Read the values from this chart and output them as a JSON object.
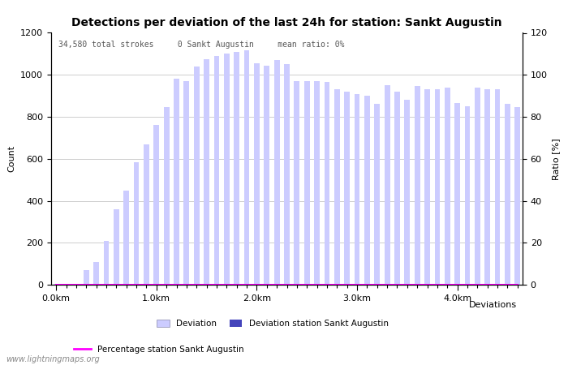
{
  "title": "Detections per deviation of the last 24h for station: Sankt Augustin",
  "subtitle": "34,580 total strokes     0 Sankt Augustin     mean ratio: 0%",
  "xlabel": "Deviations",
  "ylabel_left": "Count",
  "ylabel_right": "Ratio [%]",
  "watermark": "www.lightningmaps.org",
  "ylim_left": [
    0,
    1200
  ],
  "ylim_right": [
    0,
    120
  ],
  "yticks_left": [
    0,
    200,
    400,
    600,
    800,
    1000,
    1200
  ],
  "yticks_right": [
    0,
    20,
    40,
    60,
    80,
    100,
    120
  ],
  "xtick_labels": [
    "0.0km",
    "1.0km",
    "2.0km",
    "3.0km",
    "4.0km"
  ],
  "xtick_positions": [
    0,
    10,
    20,
    30,
    40
  ],
  "bar_color_light": "#ccccff",
  "bar_color_dark": "#4444bb",
  "ratio_line_color": "#ff00ff",
  "grid_color": "#bbbbbb",
  "deviation_values": [
    5,
    5,
    5,
    70,
    110,
    210,
    360,
    450,
    585,
    670,
    760,
    845,
    980,
    970,
    1040,
    1075,
    1090,
    1100,
    1110,
    1115,
    1055,
    1045,
    1070,
    1050,
    970,
    970,
    970,
    965,
    930,
    920,
    910,
    900,
    860,
    950,
    920,
    880,
    945,
    930,
    930,
    940,
    865,
    850,
    940,
    930,
    930,
    860,
    845
  ],
  "station_values": [
    0,
    0,
    0,
    0,
    0,
    0,
    0,
    0,
    0,
    0,
    0,
    0,
    0,
    0,
    0,
    0,
    0,
    0,
    0,
    0,
    0,
    0,
    0,
    0,
    0,
    0,
    0,
    0,
    0,
    0,
    0,
    0,
    0,
    0,
    0,
    0,
    0,
    0,
    0,
    0,
    0,
    0,
    0,
    0,
    0,
    0,
    0
  ],
  "ratio_values": [
    0,
    0,
    0,
    0,
    0,
    0,
    0,
    0,
    0,
    0,
    0,
    0,
    0,
    0,
    0,
    0,
    0,
    0,
    0,
    0,
    0,
    0,
    0,
    0,
    0,
    0,
    0,
    0,
    0,
    0,
    0,
    0,
    0,
    0,
    0,
    0,
    0,
    0,
    0,
    0,
    0,
    0,
    0,
    0,
    0,
    0,
    0
  ],
  "num_bars": 47,
  "bar_width": 0.55,
  "fig_width": 7.0,
  "fig_height": 4.5,
  "fig_dpi": 100
}
